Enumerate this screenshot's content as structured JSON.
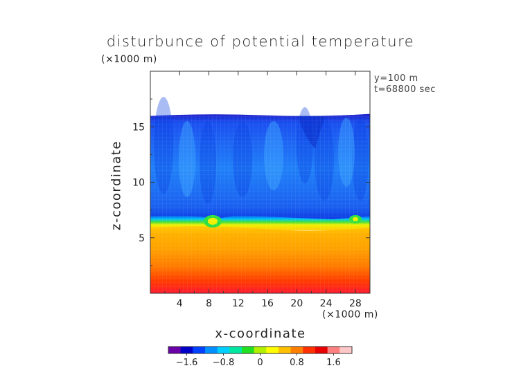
{
  "chart_data": {
    "type": "heatmap",
    "title": "disturbunce of potential temperature",
    "xlabel": "x-coordinate",
    "ylabel": "z-coordinate",
    "x_scale_label": "(×1000 m)",
    "z_scale_label": "(×1000 m)",
    "annotations": [
      "y=100 m",
      "t=68800 sec"
    ],
    "xlim": [
      0,
      30
    ],
    "ylim": [
      0,
      20
    ],
    "x_ticks": [
      4,
      8,
      12,
      16,
      20,
      24,
      28
    ],
    "y_ticks": [
      5,
      10,
      15
    ],
    "colorbar": {
      "range": [
        -2.0,
        2.0
      ],
      "ticks": [
        -1.6,
        -0.8,
        0,
        0.8,
        1.6
      ],
      "tick_labels": [
        "−1.6",
        "−0.8",
        "0",
        "0.8",
        "1.6"
      ],
      "colors": [
        "#6a00a8",
        "#0000c8",
        "#0040ff",
        "#0090ff",
        "#00d0ff",
        "#00e8a0",
        "#20e020",
        "#b0f000",
        "#ffff00",
        "#ffc000",
        "#ff8000",
        "#ff3000",
        "#e80000",
        "#ff8080",
        "#ffc8c8"
      ]
    },
    "field_summary": {
      "domain_top_z": 16.1,
      "inversion_layer_z": 6.3,
      "upper_layer_value": -1.2,
      "lower_layer_value_near_inversion": 0.8,
      "lower_layer_value_near_ground": 1.6
    }
  }
}
